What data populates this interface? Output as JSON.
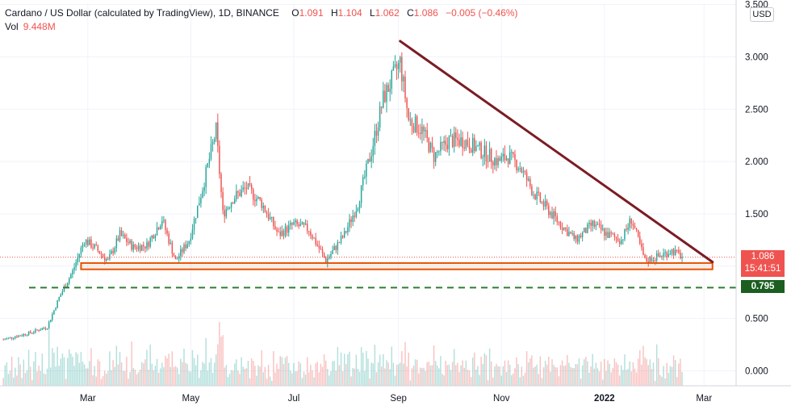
{
  "legend": {
    "symbol": "Cardano / US Dollar (calculated by TradingView), 1D, BINANCE",
    "o_label": "O",
    "o_value": "1.091",
    "h_label": "H",
    "h_value": "1.104",
    "l_label": "L",
    "l_value": "1.062",
    "c_label": "C",
    "c_value": "1.086",
    "change": "−0.005 (−0.46%)",
    "vol_label": "Vol",
    "vol_value": "9.448M"
  },
  "currency": "USD",
  "price_tags": {
    "current_price": "1.086",
    "countdown": "15:41:51",
    "support_level": "0.795"
  },
  "colors": {
    "up": "#26a69a",
    "down": "#ef5350",
    "trendline": "#7b1c24",
    "zone": "#e65100",
    "support": "#2e7d32",
    "price_line": "#ef5350"
  },
  "chart_data": {
    "type": "candlestick",
    "instrument": "ADA/USD",
    "interval": "1D",
    "exchange": "BINANCE",
    "y_tick_labels": [
      "3.500",
      "3.000",
      "2.500",
      "2.000",
      "1.500",
      "1.086",
      "0.795",
      "0.500",
      "0.000"
    ],
    "y_ticks": [
      0,
      0.5,
      1.0,
      1.5,
      2.0,
      2.5,
      3.0,
      3.5
    ],
    "ylim": [
      -0.2,
      3.5
    ],
    "x_tick_labels": [
      "Mar",
      "May",
      "Jul",
      "Sep",
      "Nov",
      "2022",
      "Mar"
    ],
    "x_ticks": [
      "2021-03-01",
      "2021-05-01",
      "2021-07-01",
      "2021-09-01",
      "2021-11-01",
      "2022-01-01",
      "2022-03-01"
    ],
    "xlim": [
      "2021-01-08",
      "2022-03-20"
    ],
    "close_series": [
      [
        "2021-01-10",
        0.3
      ],
      [
        "2021-01-25",
        0.36
      ],
      [
        "2021-02-05",
        0.42
      ],
      [
        "2021-02-12",
        0.7
      ],
      [
        "2021-02-20",
        0.95
      ],
      [
        "2021-02-27",
        1.25
      ],
      [
        "2021-03-05",
        1.18
      ],
      [
        "2021-03-13",
        1.05
      ],
      [
        "2021-03-20",
        1.3
      ],
      [
        "2021-03-28",
        1.18
      ],
      [
        "2021-04-05",
        1.2
      ],
      [
        "2021-04-14",
        1.45
      ],
      [
        "2021-04-22",
        1.05
      ],
      [
        "2021-04-30",
        1.25
      ],
      [
        "2021-05-08",
        1.75
      ],
      [
        "2021-05-16",
        2.3
      ],
      [
        "2021-05-20",
        1.5
      ],
      [
        "2021-05-26",
        1.65
      ],
      [
        "2021-06-03",
        1.75
      ],
      [
        "2021-06-12",
        1.6
      ],
      [
        "2021-06-22",
        1.3
      ],
      [
        "2021-07-01",
        1.4
      ],
      [
        "2021-07-10",
        1.35
      ],
      [
        "2021-07-20",
        1.05
      ],
      [
        "2021-07-31",
        1.3
      ],
      [
        "2021-08-08",
        1.6
      ],
      [
        "2021-08-16",
        2.1
      ],
      [
        "2021-08-23",
        2.6
      ],
      [
        "2021-09-02",
        2.95
      ],
      [
        "2021-09-07",
        2.4
      ],
      [
        "2021-09-15",
        2.3
      ],
      [
        "2021-09-22",
        2.05
      ],
      [
        "2021-10-01",
        2.2
      ],
      [
        "2021-10-10",
        2.2
      ],
      [
        "2021-10-20",
        2.1
      ],
      [
        "2021-10-30",
        2.0
      ],
      [
        "2021-11-05",
        2.05
      ],
      [
        "2021-11-12",
        1.95
      ],
      [
        "2021-11-20",
        1.7
      ],
      [
        "2021-11-28",
        1.55
      ],
      [
        "2021-12-06",
        1.4
      ],
      [
        "2021-12-15",
        1.25
      ],
      [
        "2021-12-25",
        1.4
      ],
      [
        "2022-01-03",
        1.3
      ],
      [
        "2022-01-11",
        1.25
      ],
      [
        "2022-01-17",
        1.45
      ],
      [
        "2022-01-25",
        1.05
      ],
      [
        "2022-02-03",
        1.1
      ],
      [
        "2022-02-10",
        1.15
      ],
      [
        "2022-02-16",
        1.09
      ]
    ],
    "annotations": {
      "trendline": {
        "start": [
          "2021-09-02",
          3.15
        ],
        "end": [
          "2022-03-06",
          1.04
        ]
      },
      "support_zone": {
        "x_start": "2021-02-25",
        "x_end": "2022-03-06",
        "y_low": 0.97,
        "y_high": 1.03
      },
      "support_line": {
        "value": 0.795,
        "style": "dashed"
      },
      "last_price_line": {
        "value": 1.086,
        "style": "dotted"
      }
    }
  }
}
